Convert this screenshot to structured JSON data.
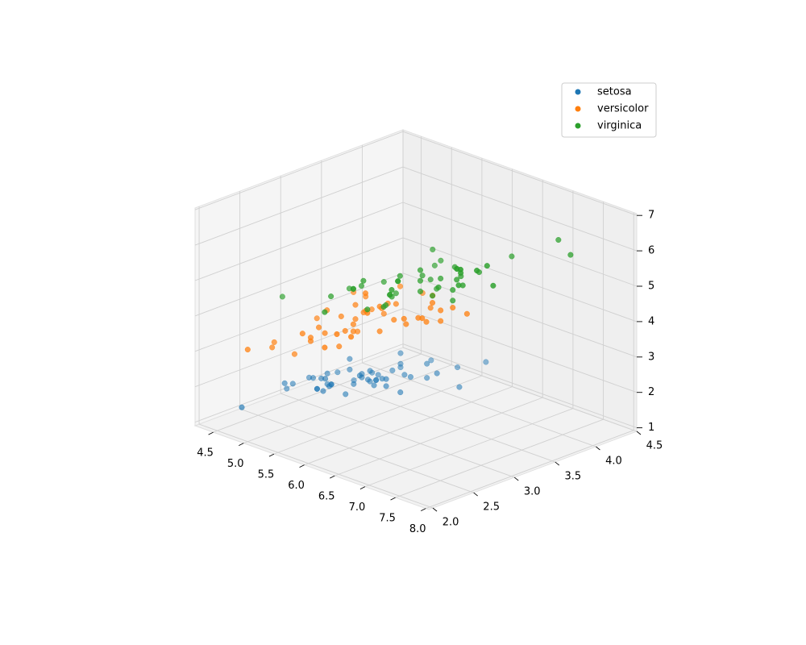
{
  "chart_data": {
    "type": "scatter3d",
    "xlim": [
      4.2,
      8.05
    ],
    "ylim": [
      1.95,
      4.5
    ],
    "zlim": [
      0.9,
      7.05
    ],
    "xticks": [
      4.5,
      {
        "value": 5,
        "label": "5.0"
      },
      5.5,
      {
        "value": 6,
        "label": "6.0"
      },
      6.5,
      {
        "value": 7,
        "label": "7.0"
      },
      7.5,
      {
        "value": 8,
        "label": "8.0"
      }
    ],
    "yticks": [
      {
        "value": 2,
        "label": "2.0"
      },
      2.5,
      {
        "value": 3,
        "label": "3.0"
      },
      3.5,
      {
        "value": 4,
        "label": "4.0"
      },
      4.5
    ],
    "zticks": [
      1,
      2,
      3,
      4,
      5,
      6,
      7
    ],
    "grid": true,
    "legend": "upper right",
    "series": [
      {
        "name": "setosa",
        "color": "#1f77b4",
        "x": [
          5.1,
          4.9,
          4.7,
          4.6,
          5.0,
          5.4,
          4.6,
          5.0,
          4.4,
          4.9,
          5.4,
          4.8,
          4.8,
          4.3,
          5.8,
          5.7,
          5.4,
          5.1,
          5.7,
          5.1,
          5.4,
          5.1,
          4.6,
          5.1,
          4.8,
          5.0,
          5.0,
          5.2,
          5.2,
          4.7,
          4.8,
          5.4,
          5.2,
          5.5,
          4.9,
          5.0,
          5.5,
          4.9,
          4.4,
          5.1,
          5.0,
          4.5,
          4.4,
          5.0,
          5.1,
          4.8,
          5.1,
          4.6,
          5.3,
          5.0
        ],
        "y": [
          3.5,
          3.0,
          3.2,
          3.1,
          3.6,
          3.9,
          3.4,
          3.4,
          2.9,
          3.1,
          3.7,
          3.4,
          3.0,
          3.0,
          4.0,
          4.4,
          3.9,
          3.5,
          3.8,
          3.8,
          3.4,
          3.7,
          3.6,
          3.3,
          3.4,
          3.0,
          3.4,
          3.5,
          3.4,
          3.2,
          3.1,
          3.4,
          4.1,
          4.2,
          3.1,
          3.2,
          3.5,
          3.6,
          3.0,
          3.4,
          3.5,
          2.3,
          3.2,
          3.5,
          3.8,
          3.0,
          3.8,
          3.2,
          3.7,
          3.3
        ],
        "z": [
          1.4,
          1.4,
          1.3,
          1.5,
          1.4,
          1.7,
          1.4,
          1.5,
          1.4,
          1.5,
          1.5,
          1.6,
          1.4,
          1.1,
          1.2,
          1.5,
          1.3,
          1.4,
          1.7,
          1.5,
          1.7,
          1.5,
          1.0,
          1.7,
          1.9,
          1.6,
          1.6,
          1.5,
          1.4,
          1.6,
          1.6,
          1.5,
          1.5,
          1.4,
          1.5,
          1.2,
          1.3,
          1.4,
          1.3,
          1.5,
          1.3,
          1.3,
          1.3,
          1.6,
          1.9,
          1.4,
          1.6,
          1.4,
          1.5,
          1.4
        ]
      },
      {
        "name": "versicolor",
        "color": "#ff7f0e",
        "x": [
          7.0,
          6.4,
          6.9,
          5.5,
          6.5,
          5.7,
          6.3,
          4.9,
          6.6,
          5.2,
          5.0,
          5.9,
          6.0,
          6.1,
          5.6,
          6.7,
          5.6,
          5.8,
          6.2,
          5.6,
          5.9,
          6.1,
          6.3,
          6.1,
          6.4,
          6.6,
          6.8,
          6.7,
          6.0,
          5.7,
          5.5,
          5.5,
          5.8,
          6.0,
          5.4,
          6.0,
          6.7,
          6.3,
          5.6,
          5.5,
          5.5,
          6.1,
          5.8,
          5.0,
          5.6,
          5.7,
          5.7,
          6.2,
          5.1,
          5.7
        ],
        "y": [
          3.2,
          3.2,
          3.1,
          2.3,
          2.8,
          2.8,
          3.3,
          2.4,
          2.9,
          2.7,
          2.0,
          3.0,
          2.2,
          2.9,
          2.9,
          3.1,
          3.0,
          2.7,
          2.2,
          2.5,
          3.2,
          2.8,
          2.5,
          2.8,
          2.9,
          3.0,
          2.8,
          3.0,
          2.9,
          2.6,
          2.4,
          2.4,
          2.7,
          2.7,
          3.0,
          3.4,
          3.1,
          2.3,
          3.0,
          2.5,
          2.6,
          3.0,
          2.6,
          2.3,
          2.7,
          3.0,
          2.9,
          2.9,
          2.5,
          2.8
        ],
        "z": [
          4.7,
          4.5,
          4.9,
          4.0,
          4.6,
          4.5,
          4.7,
          3.3,
          4.6,
          3.9,
          3.5,
          4.2,
          4.0,
          4.7,
          3.6,
          4.4,
          4.5,
          4.1,
          4.5,
          3.9,
          4.8,
          4.0,
          4.9,
          4.7,
          4.3,
          4.4,
          4.8,
          5.0,
          4.5,
          3.5,
          3.8,
          3.7,
          3.9,
          5.1,
          4.5,
          4.5,
          4.7,
          4.4,
          4.1,
          4.0,
          4.4,
          4.6,
          4.0,
          3.3,
          4.2,
          4.2,
          4.2,
          4.3,
          3.0,
          4.1
        ]
      },
      {
        "name": "virginica",
        "color": "#2ca02c",
        "x": [
          6.3,
          5.8,
          7.1,
          6.3,
          6.5,
          7.6,
          4.9,
          7.3,
          6.7,
          7.2,
          6.5,
          6.4,
          6.8,
          5.7,
          5.8,
          6.4,
          6.5,
          7.7,
          7.7,
          6.0,
          6.9,
          5.6,
          7.7,
          6.3,
          6.7,
          7.2,
          6.2,
          6.1,
          6.4,
          7.2,
          7.4,
          7.9,
          6.4,
          6.3,
          6.1,
          7.7,
          6.3,
          6.4,
          6.0,
          6.9,
          6.7,
          6.9,
          5.8,
          6.8,
          6.7,
          6.7,
          6.3,
          6.5,
          6.2,
          5.9
        ],
        "y": [
          3.3,
          2.7,
          3.0,
          2.9,
          3.0,
          3.0,
          2.5,
          2.9,
          2.5,
          3.6,
          3.2,
          2.7,
          3.0,
          2.5,
          2.8,
          3.2,
          3.0,
          3.8,
          2.6,
          2.2,
          3.2,
          2.8,
          2.8,
          2.7,
          3.3,
          3.2,
          2.8,
          3.0,
          2.8,
          3.0,
          2.8,
          3.8,
          2.8,
          2.8,
          2.6,
          3.0,
          3.4,
          3.1,
          3.0,
          3.1,
          3.1,
          3.1,
          2.7,
          3.2,
          3.3,
          3.0,
          2.5,
          3.0,
          3.4,
          3.0
        ],
        "z": [
          6.0,
          5.1,
          5.9,
          5.6,
          5.8,
          6.6,
          4.5,
          6.3,
          5.8,
          6.1,
          5.1,
          5.3,
          5.5,
          5.0,
          5.1,
          5.3,
          5.5,
          6.7,
          6.9,
          5.0,
          5.7,
          4.9,
          6.7,
          4.9,
          5.7,
          6.0,
          4.8,
          4.9,
          5.6,
          5.8,
          6.1,
          6.4,
          5.6,
          5.1,
          5.6,
          6.1,
          5.6,
          5.5,
          4.8,
          5.4,
          5.6,
          5.1,
          5.1,
          5.9,
          5.7,
          5.2,
          5.0,
          5.2,
          5.4,
          5.1
        ]
      }
    ]
  }
}
